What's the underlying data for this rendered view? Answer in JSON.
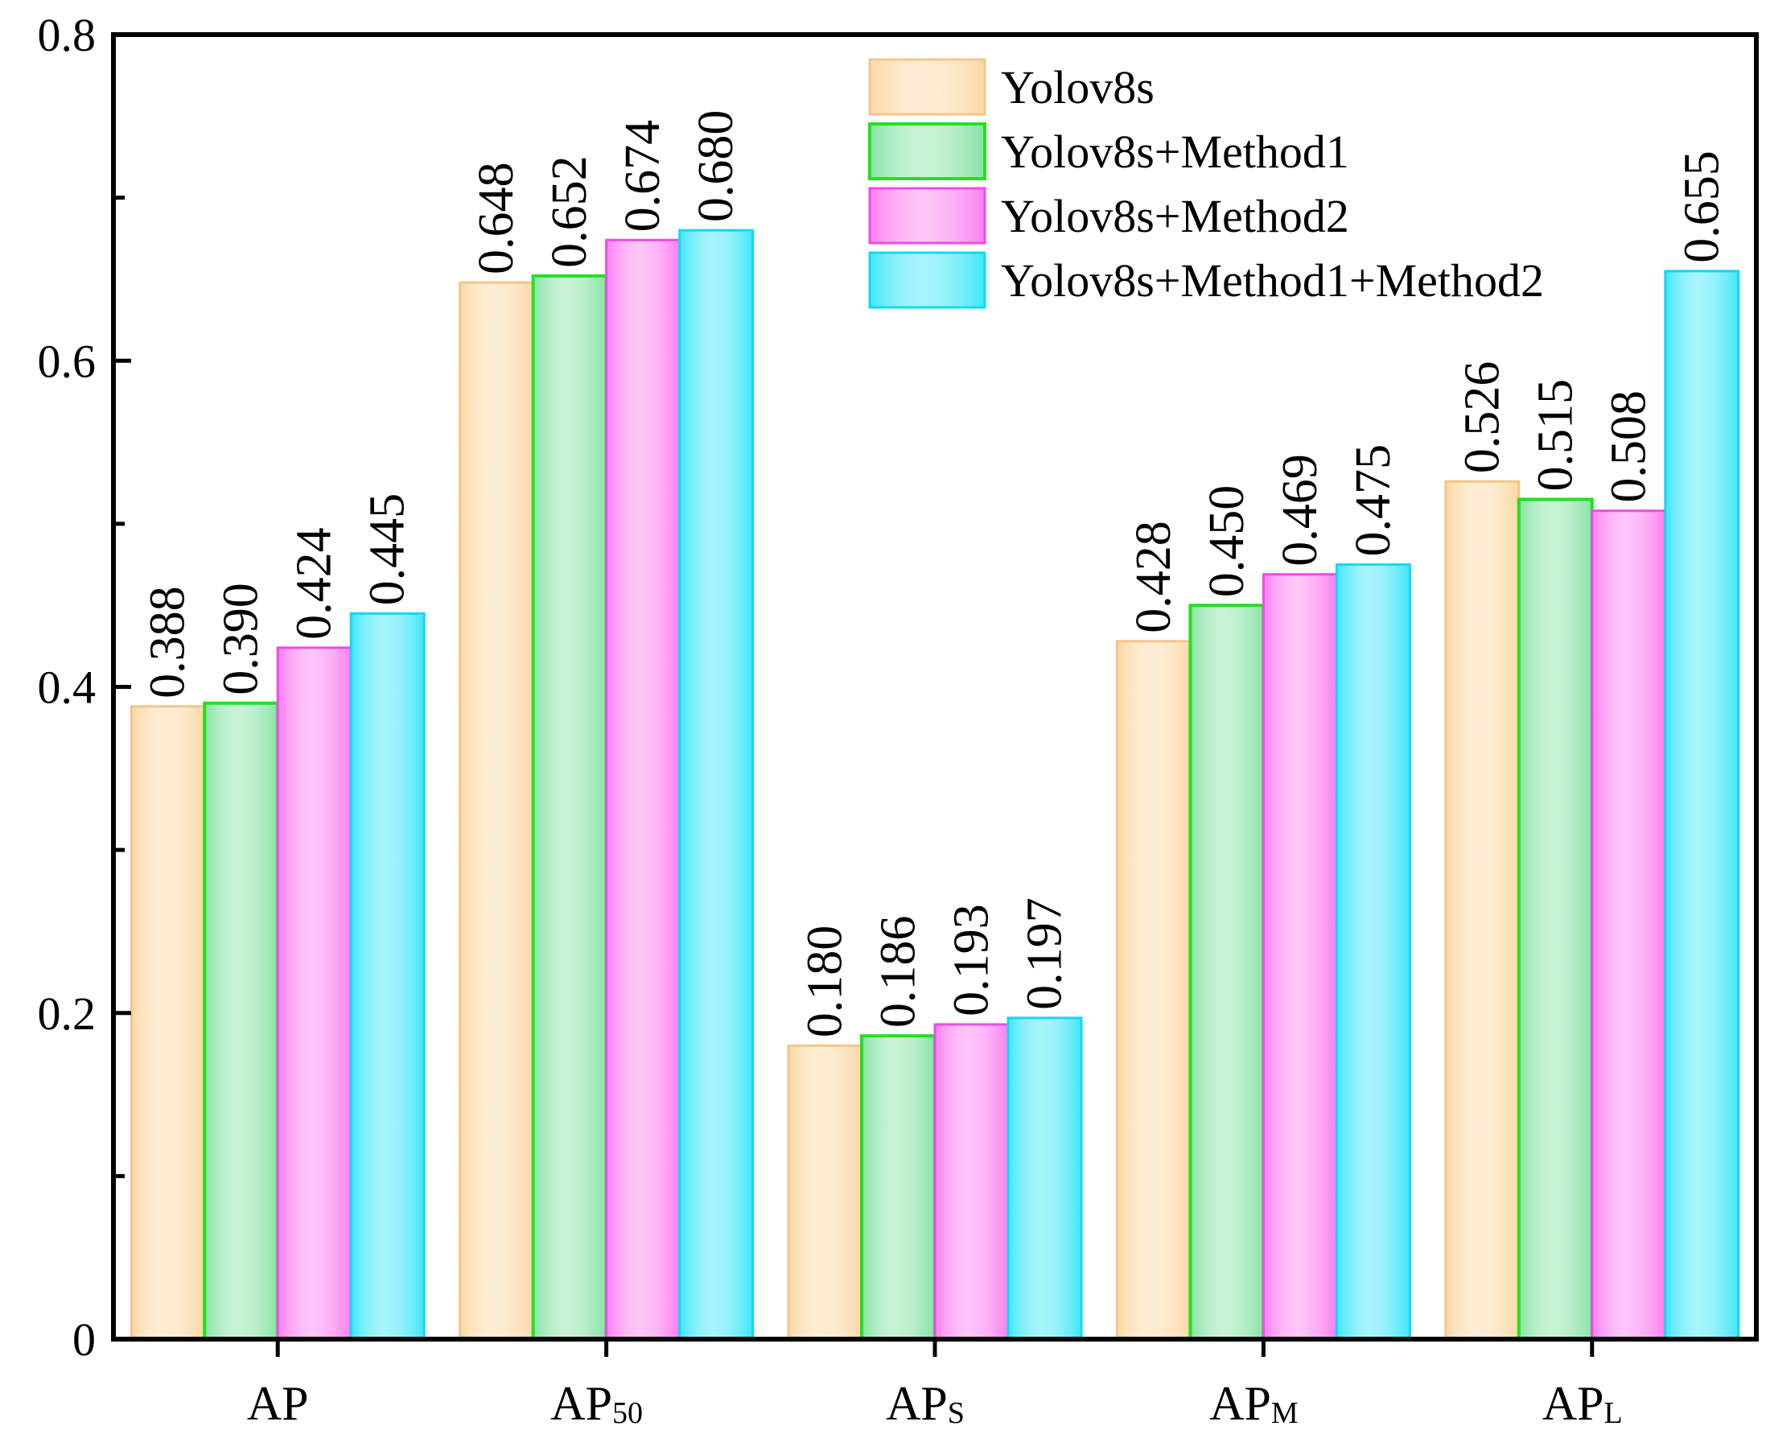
{
  "chart_data": {
    "type": "bar",
    "title": "",
    "xlabel": "",
    "ylabel": "",
    "ylim": [
      0,
      0.8
    ],
    "yticks": [
      "0",
      "0.2",
      "0.4",
      "0.6",
      "0.8"
    ],
    "categories": [
      {
        "main": "AP",
        "sub": ""
      },
      {
        "main": "AP",
        "sub": "50"
      },
      {
        "main": "AP",
        "sub": "S"
      },
      {
        "main": "AP",
        "sub": "M"
      },
      {
        "main": "AP",
        "sub": "L"
      }
    ],
    "legend_position": "top-right",
    "series": [
      {
        "name": "Yolov8s",
        "color": "#fbd8a4",
        "edge": "#f5c48a",
        "values": [
          0.388,
          0.648,
          0.18,
          0.428,
          0.526
        ],
        "labels": [
          "0.388",
          "0.648",
          "0.180",
          "0.428",
          "0.526"
        ]
      },
      {
        "name": "Yolov8s+Method1",
        "color": "#86e3a4",
        "edge": "#22e022",
        "values": [
          0.39,
          0.652,
          0.186,
          0.45,
          0.515
        ],
        "labels": [
          "0.390",
          "0.652",
          "0.186",
          "0.450",
          "0.515"
        ]
      },
      {
        "name": "Yolov8s+Method2",
        "color": "#fb7df0",
        "edge": "#f04ce4",
        "values": [
          0.424,
          0.674,
          0.193,
          0.469,
          0.508
        ],
        "labels": [
          "0.424",
          "0.674",
          "0.193",
          "0.469",
          "0.508"
        ]
      },
      {
        "name": "Yolov8s+Method1+Method2",
        "color": "#3de6f8",
        "edge": "#14d8f0",
        "values": [
          0.445,
          0.68,
          0.197,
          0.475,
          0.655
        ],
        "labels": [
          "0.445",
          "0.680",
          "0.197",
          "0.475",
          "0.655"
        ]
      }
    ]
  }
}
